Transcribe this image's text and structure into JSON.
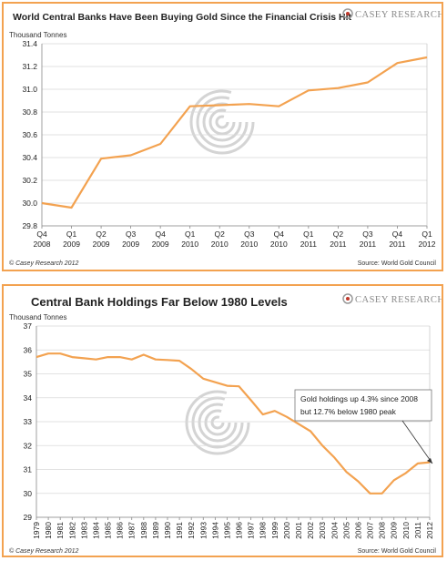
{
  "logo": {
    "text": "CASEY RESEARCH.COM",
    "icon": "target-swirl-icon"
  },
  "colors": {
    "border": "#f3a250",
    "line": "#f3a250",
    "grid": "#d9d9d9",
    "watermark": "#d4d4d4"
  },
  "chart_data": [
    {
      "type": "line",
      "title": "World Central Banks Have Been Buying Gold Since the Financial Crisis Hit",
      "ylabel": "Thousand Tonnes",
      "xlabel": "",
      "ylim": [
        29.8,
        31.4
      ],
      "yticks": [
        "29.8",
        "30.0",
        "30.2",
        "30.4",
        "30.6",
        "30.8",
        "31.0",
        "31.2",
        "31.4"
      ],
      "grid": true,
      "categories": [
        {
          "q": "Q4",
          "y": "2008"
        },
        {
          "q": "Q1",
          "y": "2009"
        },
        {
          "q": "Q2",
          "y": "2009"
        },
        {
          "q": "Q3",
          "y": "2009"
        },
        {
          "q": "Q4",
          "y": "2009"
        },
        {
          "q": "Q1",
          "y": "2010"
        },
        {
          "q": "Q2",
          "y": "2010"
        },
        {
          "q": "Q3",
          "y": "2010"
        },
        {
          "q": "Q4",
          "y": "2010"
        },
        {
          "q": "Q1",
          "y": "2011"
        },
        {
          "q": "Q2",
          "y": "2011"
        },
        {
          "q": "Q3",
          "y": "2011"
        },
        {
          "q": "Q4",
          "y": "2011"
        },
        {
          "q": "Q1",
          "y": "2012"
        }
      ],
      "values": [
        30.0,
        29.96,
        30.39,
        30.42,
        30.52,
        30.85,
        30.86,
        30.87,
        30.85,
        30.99,
        31.01,
        31.06,
        31.23,
        31.28
      ],
      "copyright": "© Casey Research 2012",
      "source": "Source: World Gold Council"
    },
    {
      "type": "line",
      "title": "Central Bank Holdings Far Below 1980 Levels",
      "ylabel": "Thousand Tonnes",
      "xlabel": "",
      "ylim": [
        29,
        37
      ],
      "yticks": [
        "29",
        "30",
        "31",
        "32",
        "33",
        "34",
        "35",
        "36",
        "37"
      ],
      "grid": true,
      "categories": [
        "1979",
        "1980",
        "1981",
        "1982",
        "1983",
        "1984",
        "1985",
        "1986",
        "1987",
        "1988",
        "1989",
        "1990",
        "1991",
        "1992",
        "1993",
        "1994",
        "1995",
        "1996",
        "1997",
        "1998",
        "1999",
        "2000",
        "2001",
        "2002",
        "2003",
        "2004",
        "2005",
        "2006",
        "2007",
        "2008",
        "2009",
        "2010",
        "2011",
        "2012"
      ],
      "values": [
        35.7,
        35.85,
        35.85,
        35.7,
        35.65,
        35.6,
        35.7,
        35.7,
        35.6,
        35.8,
        35.6,
        35.58,
        35.55,
        35.2,
        34.8,
        34.65,
        34.5,
        34.48,
        33.9,
        33.3,
        33.45,
        33.2,
        32.9,
        32.6,
        32.0,
        31.5,
        30.9,
        30.5,
        30.0,
        30.0,
        30.55,
        30.85,
        31.25,
        31.3
      ],
      "annotation": {
        "line1": "Gold holdings up 4.3% since 2008",
        "line2": "but 12.7% below 1980 peak"
      },
      "copyright": "© Casey Research 2012",
      "source": "Source: World Gold Council"
    }
  ]
}
